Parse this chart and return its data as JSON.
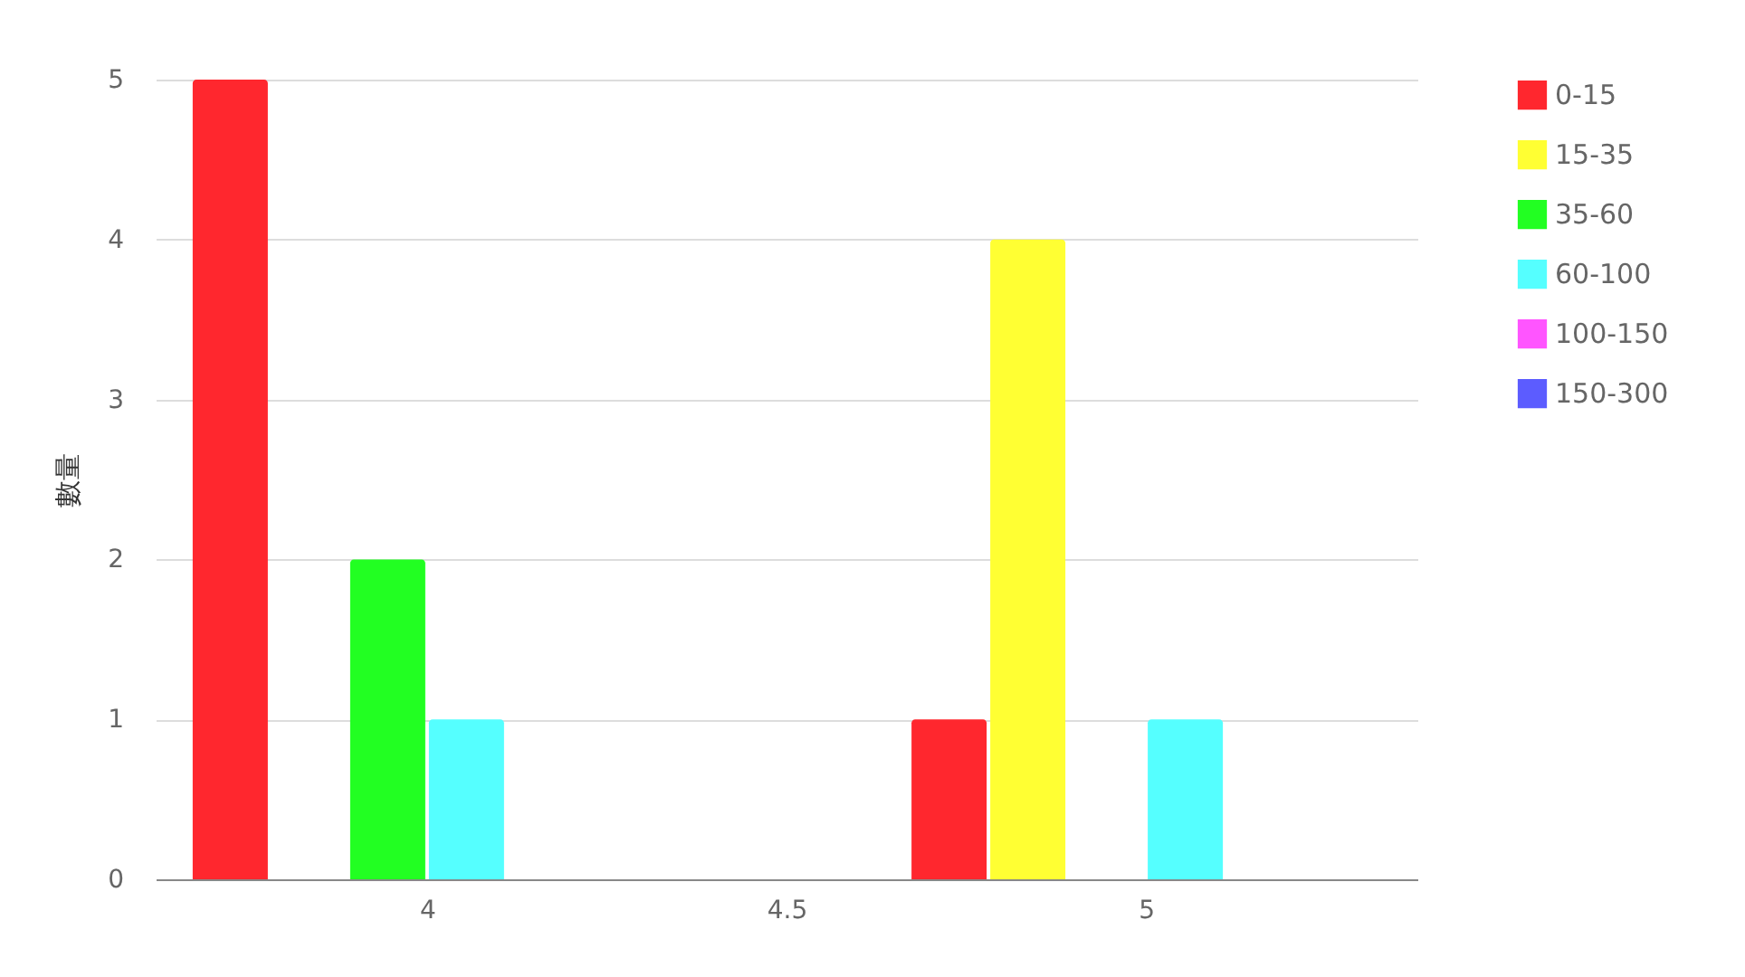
{
  "chart_data": {
    "type": "bar",
    "ylabel": "數量",
    "x": [
      4,
      5
    ],
    "xlim": [
      3.635,
      5.365
    ],
    "xticks": [
      4,
      4.5,
      5
    ],
    "ylim": [
      0,
      5
    ],
    "yticks": [
      0,
      1,
      2,
      3,
      4,
      5
    ],
    "grid": "y",
    "legend": "top right",
    "series": [
      {
        "name": "0-15",
        "color": "#ff272e",
        "values": [
          5,
          1
        ]
      },
      {
        "name": "15-35",
        "color": "#ffff33",
        "values": [
          0,
          4
        ]
      },
      {
        "name": "35-60",
        "color": "#22ff22",
        "values": [
          2,
          0
        ]
      },
      {
        "name": "60-100",
        "color": "#55ffff",
        "values": [
          1,
          1
        ]
      },
      {
        "name": "100-150",
        "color": "#ff55ff",
        "values": [
          0,
          0
        ]
      },
      {
        "name": "150-300",
        "color": "#5c5cff",
        "values": [
          0,
          0
        ]
      }
    ]
  }
}
